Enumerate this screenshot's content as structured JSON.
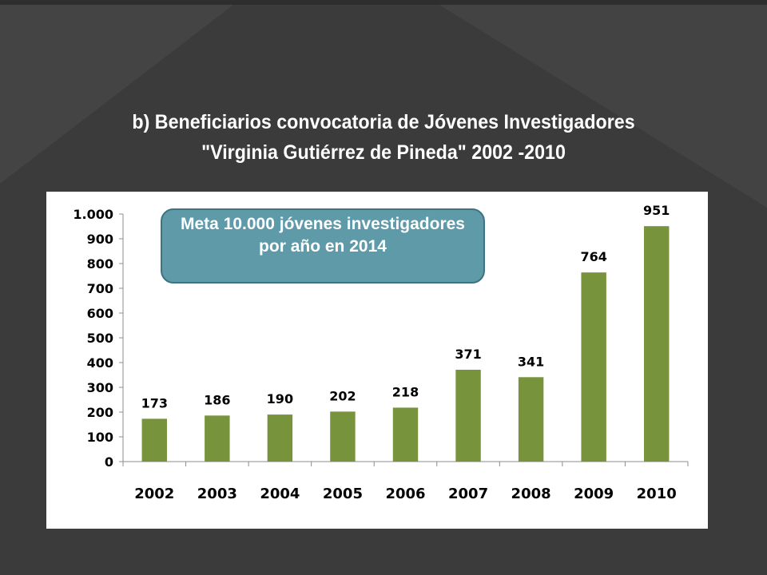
{
  "title": {
    "line1": "b) Beneficiarios convocatoria de Jóvenes Investigadores",
    "line2": "\"Virginia Gutiérrez de Pineda\" 2002 -2010"
  },
  "callout": {
    "text": "Meta 10.000 jóvenes investigadores por año en 2014"
  },
  "colors": {
    "background": "#3b3b3b",
    "bar": "#77933c",
    "callout_fill": "#5f9aa9",
    "callout_border": "#3f7282"
  },
  "chart_data": {
    "type": "bar",
    "categories": [
      "2002",
      "2003",
      "2004",
      "2005",
      "2006",
      "2007",
      "2008",
      "2009",
      "2010"
    ],
    "values": [
      173,
      186,
      190,
      202,
      218,
      371,
      341,
      764,
      951
    ],
    "data_labels": [
      "173",
      "186",
      "190",
      "202",
      "218",
      "371",
      "341",
      "764",
      "951"
    ],
    "ylim": [
      0,
      1000
    ],
    "yticks": [
      0,
      100,
      200,
      300,
      400,
      500,
      600,
      700,
      800,
      900,
      1000
    ],
    "ytick_labels": [
      "0",
      "100",
      "200",
      "300",
      "400",
      "500",
      "600",
      "700",
      "800",
      "900",
      "1.000"
    ],
    "grid": false,
    "legend": "none"
  }
}
